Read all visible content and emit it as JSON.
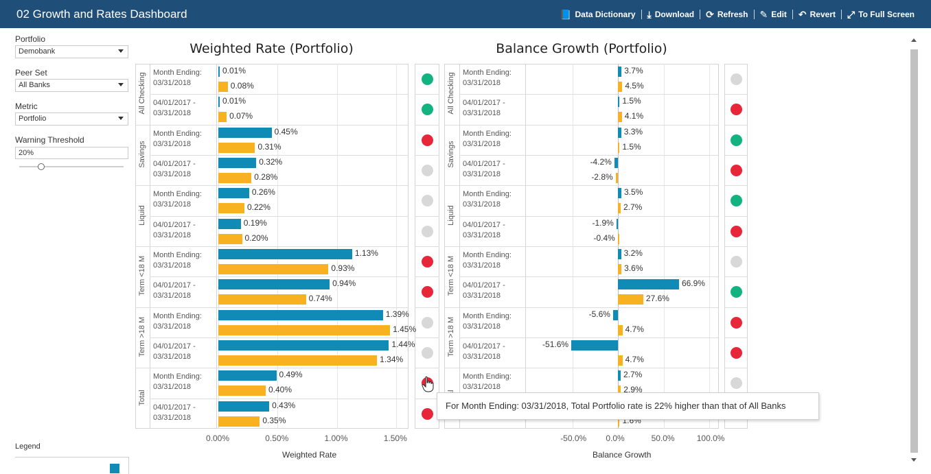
{
  "header": {
    "title": "02 Growth and Rates Dashboard",
    "toolbar": [
      {
        "name": "data-dictionary-button",
        "icon": "book-icon",
        "glyph": "📘",
        "label": "Data Dictionary"
      },
      {
        "name": "download-button",
        "icon": "download-icon",
        "glyph": "⤓",
        "label": "Download"
      },
      {
        "name": "refresh-button",
        "icon": "refresh-icon",
        "glyph": "⟳",
        "label": "Refresh"
      },
      {
        "name": "edit-button",
        "icon": "edit-icon",
        "glyph": "✎",
        "label": "Edit"
      },
      {
        "name": "revert-button",
        "icon": "undo-icon",
        "glyph": "↶",
        "label": "Revert"
      },
      {
        "name": "full-screen-button",
        "icon": "expand-icon",
        "glyph": "⤢",
        "label": "To Full Screen"
      }
    ]
  },
  "sidebar": {
    "portfolio": {
      "label": "Portfolio",
      "value": "Demobank"
    },
    "peer_set": {
      "label": "Peer Set",
      "value": "All Banks"
    },
    "metric": {
      "label": "Metric",
      "value": "Portfolio"
    },
    "warning_threshold": {
      "label": "Warning Threshold",
      "value": "20%",
      "slider_fraction": 0.2
    },
    "legend_label": "Legend"
  },
  "colors": {
    "portfolio_bar": "#0f8bb5",
    "peer_bar": "#f8b221",
    "status_red": "#e8263a",
    "status_green": "#13b281",
    "status_grey": "#d8d8d8",
    "header_bg": "#1f4e79"
  },
  "tooltip": {
    "text": "For Month Ending: 03/31/2018, Total Portfolio rate is 22% higher than that of All Banks"
  },
  "chart_data": [
    {
      "type": "bar",
      "title": "Weighted Rate (Portfolio)",
      "xlabel": "Weighted Rate",
      "x_ticks": [
        "0.00%",
        "0.50%",
        "1.00%",
        "1.50%"
      ],
      "xlim": [
        0,
        1.6
      ],
      "groups": [
        "All Checking",
        "Savings",
        "Liquid",
        "Term <18 M",
        "Term >18 M",
        "Total"
      ],
      "periods": [
        "Month Ending:\n03/31/2018",
        "04/01/2017 -\n03/31/2018"
      ],
      "series": [
        {
          "values": [
            0.01,
            0.01,
            0.45,
            0.32,
            0.26,
            0.19,
            1.13,
            0.94,
            1.39,
            1.44,
            0.49,
            0.43
          ],
          "labels": [
            "0.01%",
            "0.01%",
            "0.45%",
            "0.32%",
            "0.26%",
            "0.19%",
            "1.13%",
            "0.94%",
            "1.39%",
            "1.44%",
            "0.49%",
            "0.43%"
          ]
        },
        {
          "values": [
            0.08,
            0.07,
            0.31,
            0.28,
            0.22,
            0.2,
            0.93,
            0.74,
            1.45,
            1.34,
            0.4,
            0.35
          ],
          "labels": [
            "0.08%",
            "0.07%",
            "0.31%",
            "0.28%",
            "0.22%",
            "0.20%",
            "0.93%",
            "0.74%",
            "1.45%",
            "1.34%",
            "0.40%",
            "0.35%"
          ]
        }
      ],
      "status": [
        "green",
        "green",
        "red",
        "grey",
        "grey",
        "grey",
        "red",
        "red",
        "grey",
        "grey",
        "red",
        "red"
      ]
    },
    {
      "type": "bar",
      "title": "Balance Growth (Portfolio)",
      "xlabel": "Balance Growth",
      "x_ticks": [
        "-50.0%",
        "0.0%",
        "50.0%",
        "100.0%"
      ],
      "xlim": [
        -100,
        110
      ],
      "groups": [
        "All Checking",
        "Savings",
        "Liquid",
        "Term <18 M",
        "Term >18 M",
        "Total"
      ],
      "periods": [
        "Month Ending:\n03/31/2018",
        "04/01/2017 -\n03/31/2018"
      ],
      "series": [
        {
          "values": [
            3.7,
            1.5,
            3.3,
            -4.2,
            3.5,
            -1.9,
            3.2,
            66.9,
            -5.6,
            -51.6,
            2.7,
            1.6
          ],
          "labels": [
            "3.7%",
            "1.5%",
            "3.3%",
            "-4.2%",
            "3.5%",
            "-1.9%",
            "3.2%",
            "66.9%",
            "-5.6%",
            "-51.6%",
            "2.7%",
            ""
          ]
        },
        {
          "values": [
            4.5,
            4.1,
            1.5,
            -2.8,
            2.7,
            -0.4,
            3.6,
            27.6,
            4.7,
            4.7,
            2.9,
            1.6
          ],
          "labels": [
            "4.5%",
            "4.1%",
            "1.5%",
            "-2.8%",
            "2.7%",
            "-0.4%",
            "3.6%",
            "27.6%",
            "4.7%",
            "4.7%",
            "2.9%",
            "1.6%"
          ]
        }
      ],
      "status": [
        "grey",
        "red",
        "green",
        "red",
        "green",
        "red",
        "grey",
        "green",
        "red",
        "red",
        "grey",
        "grey"
      ]
    }
  ]
}
